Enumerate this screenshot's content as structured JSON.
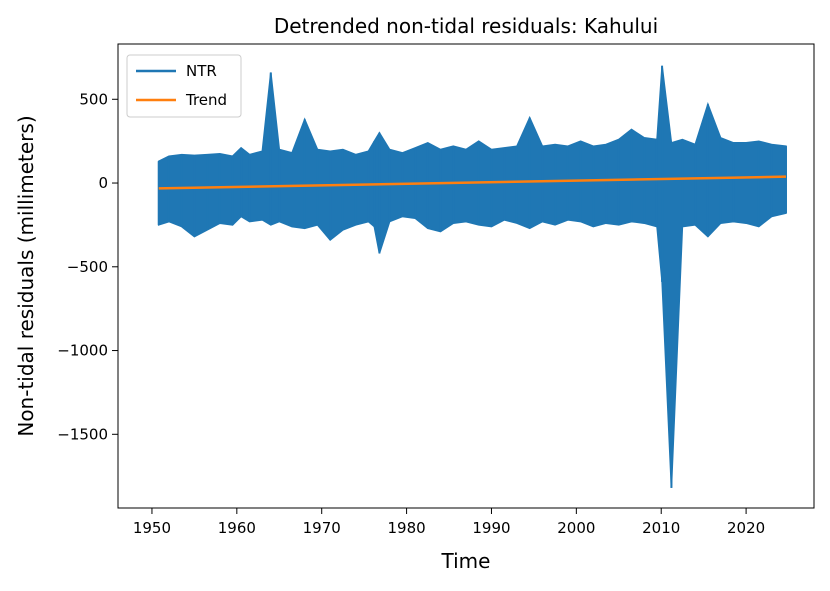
{
  "chart_data": {
    "type": "line",
    "title": "Detrended non-tidal residuals: Kahului",
    "xlabel": "Time",
    "ylabel": "Non-tidal residuals (millimeters)",
    "xlim": [
      1946,
      2028
    ],
    "ylim": [
      -1940,
      830
    ],
    "xticks": [
      1950,
      1960,
      1970,
      1980,
      1990,
      2000,
      2010,
      2020
    ],
    "xtick_labels": [
      "1950",
      "1960",
      "1970",
      "1980",
      "1990",
      "2000",
      "2010",
      "2020"
    ],
    "yticks": [
      500,
      0,
      -500,
      -1000,
      -1500
    ],
    "ytick_labels": [
      "500",
      "0",
      "−500",
      "−1000",
      "−1500"
    ],
    "grid": false,
    "legend_position": "upper left",
    "series": [
      {
        "name": "NTR",
        "color": "#1f77b4",
        "x": [
          1950.8,
          1952.0,
          1953.5,
          1955.0,
          1956.5,
          1958.0,
          1959.5,
          1960.5,
          1961.5,
          1963.0,
          1964.0,
          1965.0,
          1966.5,
          1968.0,
          1969.5,
          1971.0,
          1972.5,
          1974.0,
          1975.5,
          1976.2,
          1976.8,
          1978.0,
          1979.5,
          1981.0,
          1982.5,
          1984.0,
          1985.5,
          1987.0,
          1988.5,
          1990.0,
          1991.5,
          1993.0,
          1994.5,
          1996.0,
          1997.5,
          1999.0,
          2000.5,
          2002.0,
          2003.5,
          2005.0,
          2006.5,
          2008.0,
          2009.5,
          2010.1,
          2011.2,
          2012.5,
          2014.0,
          2015.5,
          2017.0,
          2018.5,
          2020.0,
          2021.5,
          2023.0,
          2024.7
        ],
        "y_max": [
          130,
          160,
          170,
          165,
          170,
          175,
          160,
          210,
          170,
          190,
          660,
          200,
          180,
          380,
          200,
          190,
          200,
          170,
          190,
          250,
          300,
          200,
          180,
          210,
          240,
          200,
          220,
          200,
          250,
          200,
          210,
          220,
          390,
          220,
          230,
          220,
          250,
          220,
          230,
          260,
          320,
          270,
          260,
          700,
          240,
          260,
          230,
          470,
          270,
          240,
          240,
          250,
          230,
          220
        ],
        "y_min": [
          -250,
          -230,
          -260,
          -320,
          -280,
          -240,
          -250,
          -200,
          -230,
          -220,
          -250,
          -230,
          -260,
          -270,
          -250,
          -340,
          -280,
          -250,
          -230,
          -260,
          -420,
          -230,
          -200,
          -210,
          -270,
          -290,
          -240,
          -230,
          -250,
          -260,
          -220,
          -240,
          -270,
          -230,
          -250,
          -220,
          -230,
          -260,
          -240,
          -250,
          -230,
          -240,
          -260,
          -590,
          -1820,
          -260,
          -250,
          -320,
          -240,
          -230,
          -240,
          -260,
          -200,
          -180
        ]
      },
      {
        "name": "Trend",
        "color": "#ff7f0e",
        "x": [
          1950.8,
          2024.7
        ],
        "y": [
          -32,
          38
        ]
      }
    ]
  }
}
